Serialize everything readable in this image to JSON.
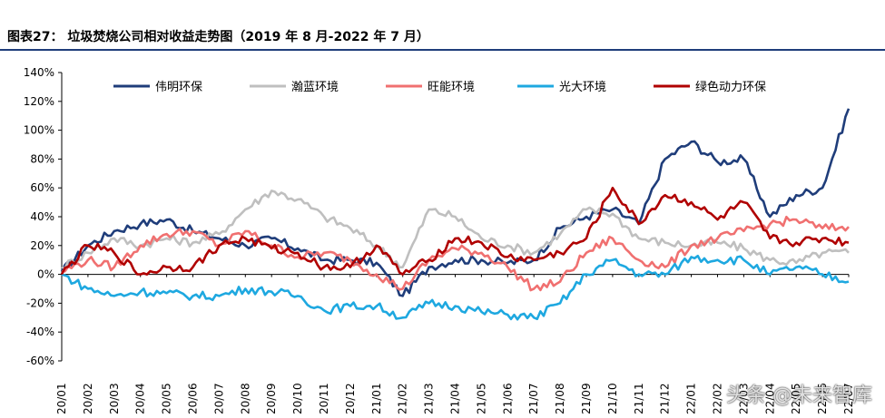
{
  "title": "图表27：  垃圾焚烧公司相对收益走势图（2019 年 8 月-2022 年 7 月）",
  "watermark": "头条 @未来智库",
  "chart_data": {
    "type": "line",
    "title": "图表27：  垃圾焚烧公司相对收益走势图（2019 年 8 月-2022 年 7 月）",
    "xlabel": "",
    "ylabel": "",
    "ylim": [
      -60,
      140
    ],
    "yticks": [
      -60,
      -40,
      -20,
      0,
      20,
      40,
      60,
      80,
      100,
      120,
      140
    ],
    "ytick_labels": [
      "-60%",
      "-40%",
      "-20%",
      "0%",
      "20%",
      "40%",
      "60%",
      "80%",
      "100%",
      "120%",
      "140%"
    ],
    "x": [
      "20/01",
      "20/02",
      "20/03",
      "20/04",
      "20/05",
      "20/06",
      "20/07",
      "20/08",
      "20/09",
      "20/10",
      "20/11",
      "20/12",
      "21/01",
      "21/02",
      "21/03",
      "21/04",
      "21/05",
      "21/06",
      "21/07",
      "21/08",
      "21/09",
      "21/10",
      "21/11",
      "21/12",
      "22/01",
      "22/02",
      "22/03",
      "22/04",
      "22/05",
      "22/06",
      "22/07"
    ],
    "legend": "top",
    "grid": false,
    "series": [
      {
        "name": "伟明环保",
        "color": "#1f3d7a",
        "values": [
          2,
          20,
          30,
          35,
          38,
          30,
          25,
          20,
          25,
          18,
          10,
          10,
          8,
          -15,
          5,
          10,
          10,
          8,
          10,
          32,
          40,
          45,
          35,
          80,
          92,
          78,
          80,
          40,
          55,
          60,
          115
        ]
      },
      {
        "name": "瀚蓝环境",
        "color": "#bfbfbf",
        "values": [
          5,
          15,
          25,
          20,
          25,
          22,
          28,
          45,
          58,
          52,
          40,
          32,
          20,
          5,
          45,
          40,
          25,
          20,
          15,
          28,
          45,
          42,
          25,
          22,
          20,
          22,
          18,
          10,
          8,
          15,
          15
        ]
      },
      {
        "name": "旺能环境",
        "color": "#f07070",
        "values": [
          2,
          10,
          5,
          20,
          28,
          30,
          20,
          30,
          20,
          12,
          15,
          10,
          0,
          -10,
          10,
          18,
          15,
          5,
          -10,
          -5,
          15,
          25,
          10,
          5,
          20,
          25,
          30,
          35,
          38,
          32,
          33
        ]
      },
      {
        "name": "光大环境",
        "color": "#1ea8e0",
        "values": [
          0,
          -10,
          -15,
          -12,
          -13,
          -15,
          -15,
          -10,
          -12,
          -15,
          -25,
          -22,
          -22,
          -30,
          -20,
          -22,
          -26,
          -28,
          -30,
          -20,
          0,
          10,
          0,
          0,
          12,
          10,
          10,
          0,
          5,
          0,
          -5
        ]
      },
      {
        "name": "绿色动力环保",
        "color": "#b00000",
        "values": [
          0,
          20,
          15,
          0,
          5,
          5,
          20,
          25,
          18,
          15,
          5,
          5,
          20,
          0,
          10,
          25,
          22,
          12,
          10,
          15,
          25,
          60,
          35,
          55,
          50,
          38,
          50,
          25,
          22,
          25,
          22
        ]
      }
    ]
  }
}
